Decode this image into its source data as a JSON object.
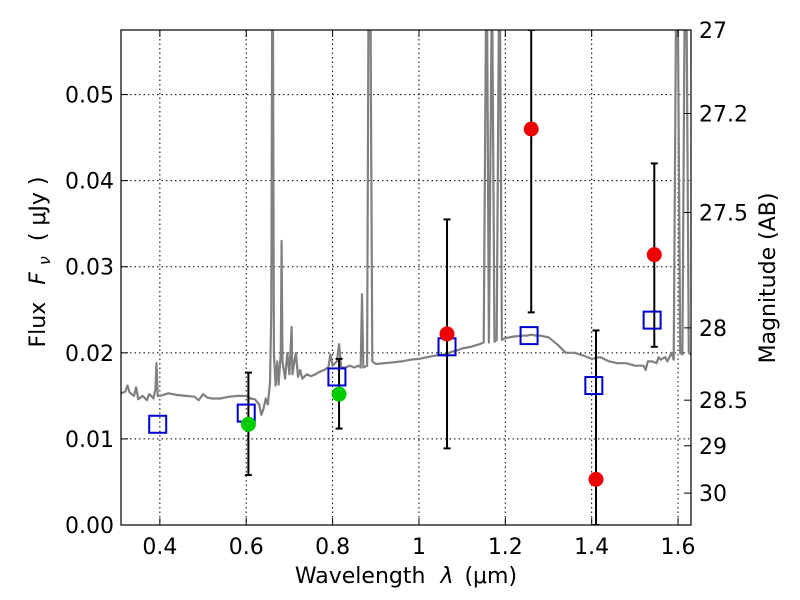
{
  "chart_data": {
    "type": "scatter",
    "xlabel_text": "Wavelength",
    "xlabel_symbol": "λ",
    "xlabel_unit": "(μm)",
    "ylabel_left_text": "Flux",
    "ylabel_left_symbol": "F",
    "ylabel_left_sub": "ν",
    "ylabel_left_unit": "( μJy )",
    "ylabel_right": "Magnitude (AB)",
    "xlim": [
      0.31,
      1.63
    ],
    "ylim": [
      0.0,
      0.0575
    ],
    "x_ticks": [
      0.4,
      0.6,
      0.8,
      1.0,
      1.2,
      1.4,
      1.6
    ],
    "x_tick_labels": [
      "0.4",
      "0.6",
      "0.8",
      "1",
      "1.2",
      "1.4",
      "1.6"
    ],
    "y_ticks": [
      0.0,
      0.01,
      0.02,
      0.03,
      0.04,
      0.05
    ],
    "y_tick_labels": [
      "0.00",
      "0.01",
      "0.02",
      "0.03",
      "0.04",
      "0.05"
    ],
    "right_ticks": [
      {
        "label": "27",
        "flux": 0.0575
      },
      {
        "label": "27.2",
        "flux": 0.0478
      },
      {
        "label": "27.5",
        "flux": 0.0363
      },
      {
        "label": "28",
        "flux": 0.0229
      },
      {
        "label": "28.5",
        "flux": 0.0145
      },
      {
        "label": "29",
        "flux": 0.0092
      },
      {
        "label": "30",
        "flux": 0.0037
      }
    ],
    "grid": true,
    "colors": {
      "spectrum": "#808080",
      "model": "#0000cc",
      "hst": "#00cc00",
      "other": "#ee0000",
      "errorbar": "#000000"
    },
    "model_points": [
      {
        "x": 0.395,
        "y": 0.0117
      },
      {
        "x": 0.6,
        "y": 0.013
      },
      {
        "x": 0.81,
        "y": 0.0172
      },
      {
        "x": 1.065,
        "y": 0.0207
      },
      {
        "x": 1.255,
        "y": 0.022
      },
      {
        "x": 1.405,
        "y": 0.0162
      },
      {
        "x": 1.54,
        "y": 0.0238
      }
    ],
    "green_points": [
      {
        "x": 0.605,
        "y": 0.0117,
        "ylo": 0.0058,
        "yhi": 0.0177
      },
      {
        "x": 0.815,
        "y": 0.0152,
        "ylo": 0.0112,
        "yhi": 0.0193
      }
    ],
    "red_points": [
      {
        "x": 1.065,
        "y": 0.0222,
        "ylo": 0.0089,
        "yhi": 0.0355
      },
      {
        "x": 1.26,
        "y": 0.046,
        "ylo": 0.0247,
        "yhi": 0.0575
      },
      {
        "x": 1.41,
        "y": 0.0053,
        "ylo": 0.0,
        "yhi": 0.0226
      },
      {
        "x": 1.545,
        "y": 0.0314,
        "ylo": 0.0207,
        "yhi": 0.042
      }
    ],
    "spectrum": [
      [
        0.31,
        0.0153
      ],
      [
        0.32,
        0.0155
      ],
      [
        0.325,
        0.0162
      ],
      [
        0.33,
        0.0154
      ],
      [
        0.34,
        0.015
      ],
      [
        0.345,
        0.016
      ],
      [
        0.35,
        0.0146
      ],
      [
        0.36,
        0.015
      ],
      [
        0.37,
        0.0145
      ],
      [
        0.375,
        0.0152
      ],
      [
        0.38,
        0.015
      ],
      [
        0.385,
        0.0147
      ],
      [
        0.39,
        0.0158
      ],
      [
        0.392,
        0.0188
      ],
      [
        0.395,
        0.015
      ],
      [
        0.4,
        0.015
      ],
      [
        0.42,
        0.0153
      ],
      [
        0.44,
        0.0151
      ],
      [
        0.46,
        0.015
      ],
      [
        0.48,
        0.0149
      ],
      [
        0.49,
        0.0145
      ],
      [
        0.5,
        0.0152
      ],
      [
        0.51,
        0.0148
      ],
      [
        0.52,
        0.0147
      ],
      [
        0.54,
        0.0147
      ],
      [
        0.56,
        0.0149
      ],
      [
        0.58,
        0.015
      ],
      [
        0.6,
        0.015
      ],
      [
        0.61,
        0.0147
      ],
      [
        0.62,
        0.0146
      ],
      [
        0.63,
        0.014
      ],
      [
        0.635,
        0.0128
      ],
      [
        0.64,
        0.0135
      ],
      [
        0.645,
        0.0147
      ],
      [
        0.65,
        0.014
      ],
      [
        0.655,
        0.0165
      ],
      [
        0.658,
        0.025
      ],
      [
        0.66,
        0.0575
      ],
      [
        0.662,
        0.0575
      ],
      [
        0.664,
        0.02
      ],
      [
        0.668,
        0.0162
      ],
      [
        0.672,
        0.019
      ],
      [
        0.675,
        0.0163
      ],
      [
        0.68,
        0.02
      ],
      [
        0.682,
        0.033
      ],
      [
        0.684,
        0.019
      ],
      [
        0.69,
        0.017
      ],
      [
        0.695,
        0.02
      ],
      [
        0.7,
        0.0175
      ],
      [
        0.705,
        0.023
      ],
      [
        0.707,
        0.0175
      ],
      [
        0.715,
        0.02
      ],
      [
        0.72,
        0.0172
      ],
      [
        0.725,
        0.018
      ],
      [
        0.73,
        0.017
      ],
      [
        0.74,
        0.0175
      ],
      [
        0.75,
        0.0173
      ],
      [
        0.76,
        0.0175
      ],
      [
        0.77,
        0.0178
      ],
      [
        0.78,
        0.018
      ],
      [
        0.79,
        0.0183
      ],
      [
        0.795,
        0.0198
      ],
      [
        0.8,
        0.0185
      ],
      [
        0.81,
        0.019
      ],
      [
        0.815,
        0.021
      ],
      [
        0.82,
        0.0183
      ],
      [
        0.83,
        0.0183
      ],
      [
        0.84,
        0.0185
      ],
      [
        0.85,
        0.0183
      ],
      [
        0.86,
        0.0185
      ],
      [
        0.865,
        0.0183
      ],
      [
        0.868,
        0.0268
      ],
      [
        0.871,
        0.0183
      ],
      [
        0.88,
        0.0185
      ],
      [
        0.883,
        0.0575
      ],
      [
        0.886,
        0.0575
      ],
      [
        0.888,
        0.0575
      ],
      [
        0.892,
        0.019
      ],
      [
        0.9,
        0.0187
      ],
      [
        0.92,
        0.0188
      ],
      [
        0.94,
        0.0189
      ],
      [
        0.96,
        0.019
      ],
      [
        0.98,
        0.0192
      ],
      [
        1.0,
        0.0193
      ],
      [
        1.02,
        0.0195
      ],
      [
        1.04,
        0.0197
      ],
      [
        1.06,
        0.0198
      ],
      [
        1.07,
        0.02
      ],
      [
        1.08,
        0.0202
      ],
      [
        1.09,
        0.0203
      ],
      [
        1.1,
        0.0205
      ],
      [
        1.12,
        0.0207
      ],
      [
        1.14,
        0.021
      ],
      [
        1.15,
        0.0212
      ],
      [
        1.155,
        0.0575
      ],
      [
        1.158,
        0.0575
      ],
      [
        1.162,
        0.0212
      ],
      [
        1.168,
        0.0575
      ],
      [
        1.17,
        0.0575
      ],
      [
        1.175,
        0.0213
      ],
      [
        1.18,
        0.0215
      ],
      [
        1.185,
        0.0575
      ],
      [
        1.188,
        0.0575
      ],
      [
        1.192,
        0.0215
      ],
      [
        1.2,
        0.0217
      ],
      [
        1.22,
        0.0219
      ],
      [
        1.24,
        0.022
      ],
      [
        1.25,
        0.022
      ],
      [
        1.26,
        0.0221
      ],
      [
        1.27,
        0.022
      ],
      [
        1.28,
        0.022
      ],
      [
        1.3,
        0.0218
      ],
      [
        1.32,
        0.021
      ],
      [
        1.34,
        0.02
      ],
      [
        1.36,
        0.02
      ],
      [
        1.38,
        0.0197
      ],
      [
        1.4,
        0.0193
      ],
      [
        1.42,
        0.0195
      ],
      [
        1.44,
        0.019
      ],
      [
        1.46,
        0.0188
      ],
      [
        1.48,
        0.0188
      ],
      [
        1.5,
        0.0185
      ],
      [
        1.52,
        0.0185
      ],
      [
        1.525,
        0.018
      ],
      [
        1.53,
        0.019
      ],
      [
        1.54,
        0.019
      ],
      [
        1.55,
        0.0188
      ],
      [
        1.555,
        0.0195
      ],
      [
        1.56,
        0.0192
      ],
      [
        1.57,
        0.0195
      ],
      [
        1.575,
        0.019
      ],
      [
        1.58,
        0.0195
      ],
      [
        1.585,
        0.02
      ],
      [
        1.59,
        0.0192
      ],
      [
        1.595,
        0.0575
      ],
      [
        1.6,
        0.0575
      ],
      [
        1.605,
        0.02
      ],
      [
        1.61,
        0.0198
      ],
      [
        1.615,
        0.0575
      ],
      [
        1.62,
        0.0575
      ],
      [
        1.625,
        0.02
      ],
      [
        1.63,
        0.0198
      ]
    ]
  }
}
